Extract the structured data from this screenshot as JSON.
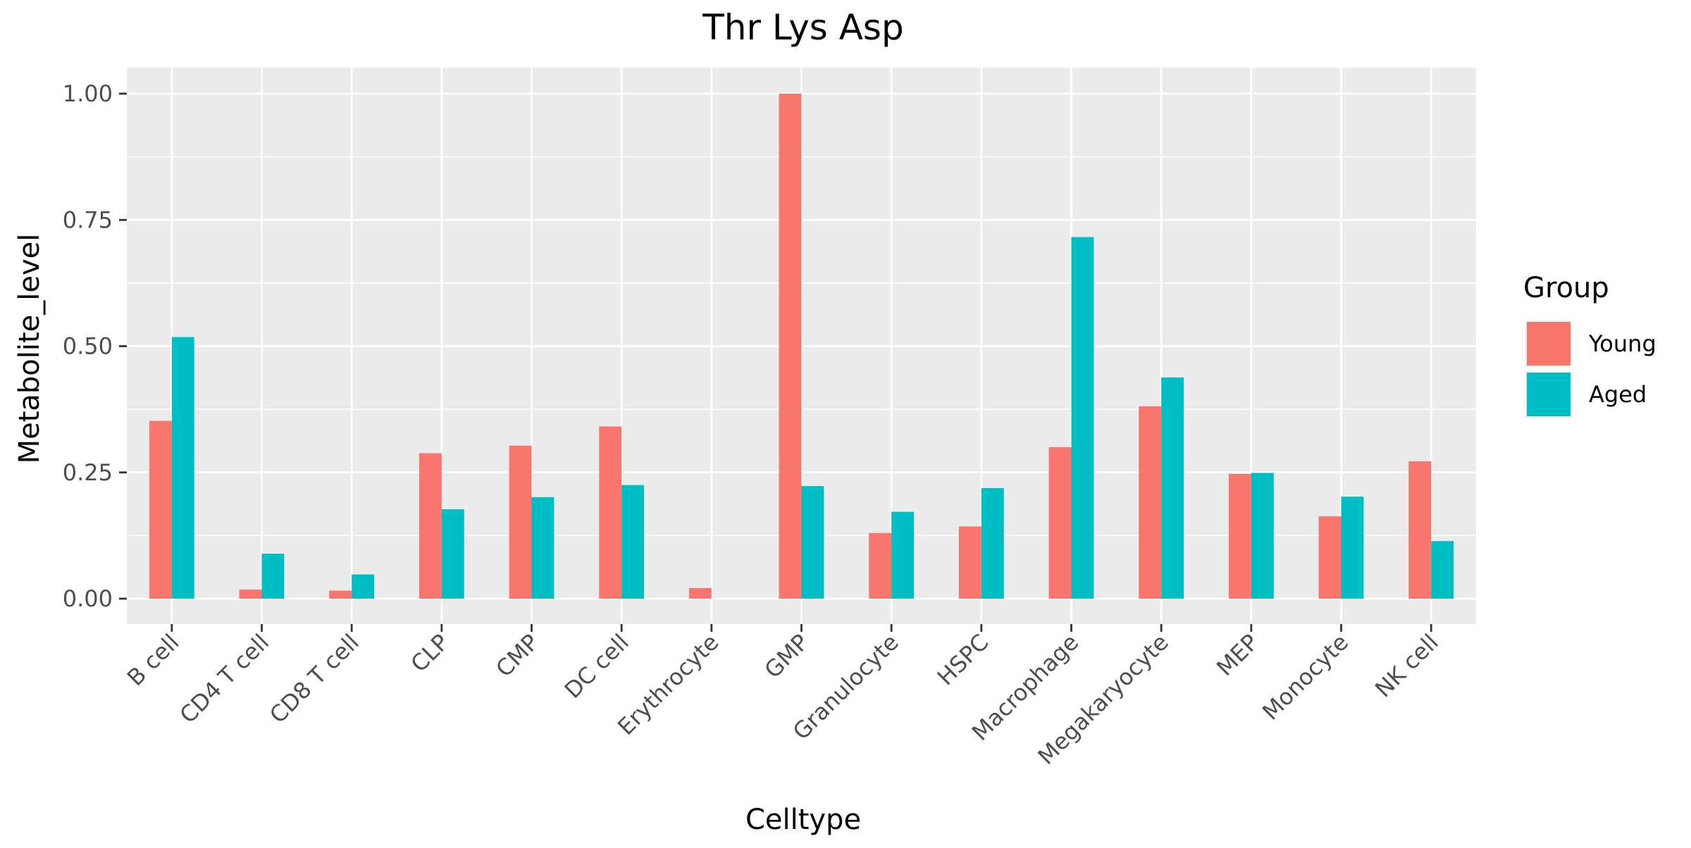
{
  "chart_data": {
    "type": "bar",
    "title": "Thr Lys Asp",
    "xlabel": "Celltype",
    "ylabel": "Metabolite_level",
    "categories": [
      "B cell",
      "CD4 T cell",
      "CD8 T cell",
      "CLP",
      "CMP",
      "DC cell",
      "Erythrocyte",
      "GMP",
      "Granulocyte",
      "HSPC",
      "Macrophage",
      "Megakaryocyte",
      "MEP",
      "Monocyte",
      "NK cell"
    ],
    "series": [
      {
        "name": "Young",
        "color": "#F8766D",
        "values": [
          0.352,
          0.018,
          0.016,
          0.288,
          0.303,
          0.341,
          0.021,
          1.0,
          0.13,
          0.143,
          0.3,
          0.381,
          0.247,
          0.163,
          0.272
        ]
      },
      {
        "name": "Aged",
        "color": "#00BFC4",
        "values": [
          0.518,
          0.089,
          0.048,
          0.177,
          0.201,
          0.225,
          0.0,
          0.223,
          0.172,
          0.219,
          0.716,
          0.438,
          0.249,
          0.202,
          0.114
        ]
      }
    ],
    "ylim": [
      -0.05,
      1.05
    ],
    "yticks": [
      0.0,
      0.25,
      0.5,
      0.75,
      1.0
    ],
    "ytick_labels": [
      "0.00",
      "0.25",
      "0.50",
      "0.75",
      "1.00"
    ],
    "grid": true,
    "legend": {
      "title": "Group",
      "placement": "right"
    },
    "panel_background": "#EBEBEB",
    "grid_color": "#FFFFFF"
  }
}
